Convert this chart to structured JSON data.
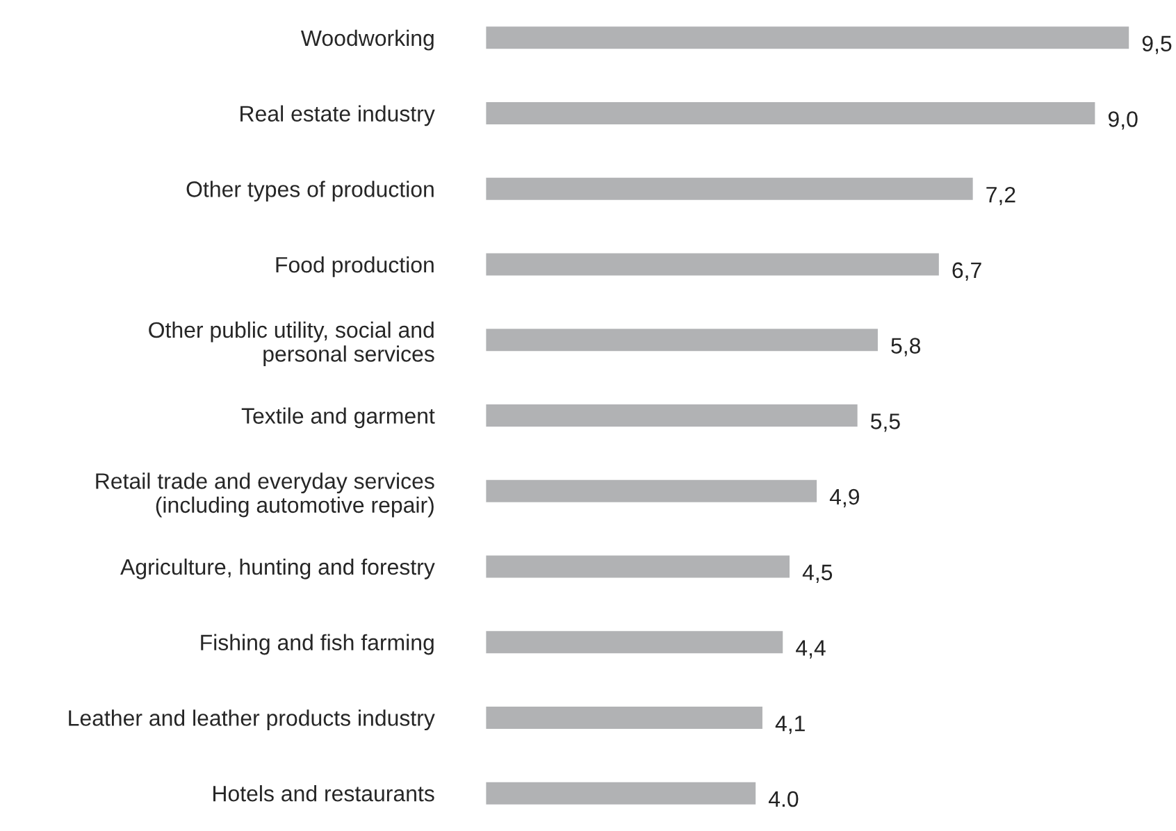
{
  "chart_data": {
    "type": "bar",
    "orientation": "horizontal",
    "categories": [
      "Woodworking",
      "Real estate industry",
      "Other types of production",
      "Food production",
      "Other public utility, social and\npersonal services",
      "Textile and garment",
      "Retail trade and everyday services\n(including automotive repair)",
      "Agriculture, hunting and forestry",
      "Fishing and fish farming",
      "Leather and leather products industry",
      "Hotels and restaurants"
    ],
    "values": [
      9.5,
      9.0,
      7.2,
      6.7,
      5.8,
      5.5,
      4.9,
      4.5,
      4.4,
      4.1,
      4.0
    ],
    "value_labels": [
      "9,5",
      "9,0",
      "7,2",
      "6,7",
      "5,8",
      "5,5",
      "4,9",
      "4,5",
      "4,4",
      "4,1",
      "4.0"
    ],
    "color": "#b1b2b4",
    "grid": false,
    "legend": false
  }
}
